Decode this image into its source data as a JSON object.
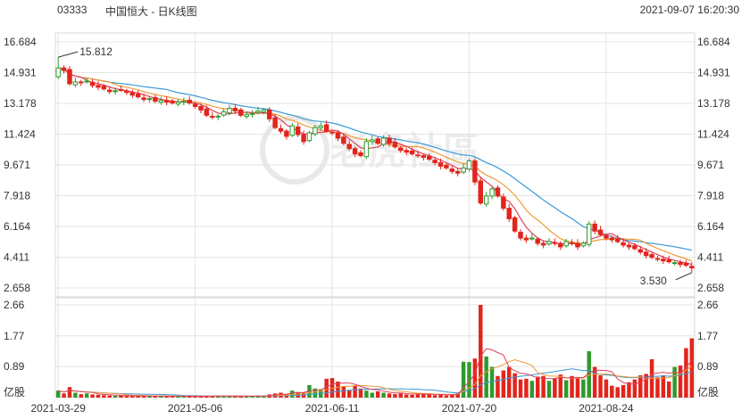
{
  "header": {
    "code": "03333",
    "title": "中国恒大 - 日K线图",
    "datetime": "2021-09-07 16:20:30"
  },
  "watermark": "老虎社區",
  "colors": {
    "up": "#2e9a2e",
    "down": "#e2251c",
    "ma5": "#e0405a",
    "ma10": "#f09a36",
    "ma20": "#3a9ad9",
    "grid": "#e4e4e4",
    "axis_text": "#333333"
  },
  "chart_data": [
    {
      "type": "candlestick",
      "name": "price",
      "y_ticks": [
        "16.684",
        "14.931",
        "13.178",
        "11.424",
        "9.671",
        "7.918",
        "6.164",
        "4.411",
        "2.658"
      ],
      "ylim": [
        2.658,
        16.684
      ],
      "x_tick_labels": [
        "2021-03-29",
        "2021-05-06",
        "2021-06-11",
        "2021-07-20",
        "2021-08-24"
      ],
      "x_tick_index": [
        0,
        24,
        48,
        72,
        96
      ],
      "annotations": [
        {
          "text": "15.812",
          "kind": "high",
          "index": 0,
          "value": 15.812
        },
        {
          "text": "3.530",
          "kind": "low",
          "index": 111,
          "value": 3.53
        }
      ],
      "close": [
        15.2,
        15.05,
        14.3,
        14.4,
        14.35,
        14.45,
        14.2,
        14.1,
        14.0,
        13.85,
        13.9,
        13.95,
        13.8,
        13.65,
        13.55,
        13.4,
        13.45,
        13.3,
        13.35,
        13.25,
        13.2,
        13.25,
        13.3,
        13.2,
        13.0,
        12.8,
        12.5,
        12.4,
        12.45,
        12.7,
        12.9,
        12.75,
        12.5,
        12.55,
        12.6,
        12.75,
        12.8,
        12.3,
        11.8,
        11.6,
        11.3,
        11.9,
        11.4,
        11.0,
        11.5,
        11.8,
        11.9,
        11.6,
        11.5,
        11.2,
        10.9,
        10.6,
        10.3,
        10.2,
        11.0,
        11.1,
        10.9,
        11.2,
        10.9,
        10.7,
        10.5,
        10.4,
        10.3,
        10.2,
        10.1,
        10.0,
        9.8,
        9.6,
        9.5,
        9.3,
        9.2,
        9.5,
        9.9,
        8.7,
        7.5,
        7.9,
        8.3,
        7.9,
        7.2,
        6.6,
        5.9,
        5.5,
        5.4,
        5.5,
        5.2,
        5.1,
        5.3,
        5.2,
        5.0,
        5.3,
        5.2,
        5.0,
        5.2,
        6.3,
        5.9,
        5.7,
        5.5,
        5.4,
        5.3,
        5.1,
        5.0,
        4.9,
        4.7,
        4.5,
        4.4,
        4.3,
        4.2,
        4.15,
        4.1,
        4.0,
        3.95,
        3.8
      ],
      "volume_y_ticks": [
        "2.66",
        "1.77",
        "0.89"
      ],
      "volume_unit": "亿股",
      "volume_ylim": [
        0,
        2.66
      ],
      "volume": [
        0.2,
        0.12,
        0.3,
        0.14,
        0.1,
        0.12,
        0.09,
        0.08,
        0.07,
        0.06,
        0.05,
        0.06,
        0.05,
        0.04,
        0.04,
        0.05,
        0.04,
        0.04,
        0.05,
        0.04,
        0.03,
        0.05,
        0.04,
        0.03,
        0.05,
        0.04,
        0.03,
        0.05,
        0.06,
        0.04,
        0.05,
        0.03,
        0.04,
        0.05,
        0.03,
        0.06,
        0.05,
        0.09,
        0.12,
        0.14,
        0.1,
        0.2,
        0.16,
        0.14,
        0.36,
        0.26,
        0.22,
        0.54,
        0.56,
        0.46,
        0.32,
        0.22,
        0.34,
        0.26,
        0.2,
        0.14,
        0.18,
        0.14,
        0.12,
        0.1,
        0.12,
        0.09,
        0.08,
        0.12,
        0.1,
        0.09,
        0.07,
        0.08,
        0.06,
        0.1,
        0.12,
        1.03,
        1.02,
        1.12,
        2.66,
        1.18,
        0.88,
        0.62,
        0.78,
        0.88,
        0.7,
        0.52,
        0.54,
        0.48,
        0.6,
        0.62,
        0.48,
        0.56,
        0.66,
        0.5,
        0.62,
        0.56,
        0.52,
        1.33,
        0.88,
        0.64,
        0.52,
        0.34,
        0.3,
        0.36,
        0.44,
        0.52,
        0.64,
        0.68,
        1.1,
        0.58,
        0.64,
        0.46,
        0.88,
        0.92,
        1.42,
        1.7
      ]
    }
  ]
}
